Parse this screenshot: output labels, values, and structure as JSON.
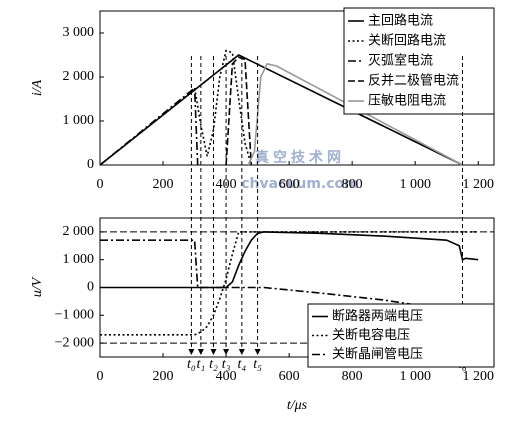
{
  "chart_data": [
    {
      "type": "line",
      "ylabel": "i/A",
      "legend": "upper right",
      "xlim": [
        0,
        1250
      ],
      "ylim": [
        0,
        3500
      ],
      "xticks": [
        0,
        200,
        400,
        600,
        800,
        {
          "value": 1000,
          "label": "1 000"
        },
        {
          "value": 1200,
          "label": "1 200"
        }
      ],
      "yticks": [
        0,
        {
          "value": 1000,
          "label": "1 000"
        },
        {
          "value": 2000,
          "label": "2 000"
        },
        {
          "value": 3000,
          "label": "3 000"
        }
      ],
      "watermark": [
        "真空技术网",
        "chvacuum.com"
      ],
      "series": [
        {
          "name": "主回路电流",
          "color": "#000000",
          "style": "solid",
          "x": [
            0,
            440,
            1150
          ],
          "values": [
            0,
            2500,
            0
          ]
        },
        {
          "name": "关断回路电流",
          "color": "#000000",
          "style": "dotted",
          "x": [
            300,
            320,
            340,
            360,
            380,
            400,
            420,
            440,
            460,
            480
          ],
          "values": [
            1750,
            900,
            200,
            800,
            2000,
            2600,
            2550,
            1500,
            500,
            0
          ]
        },
        {
          "name": "灭弧室电流",
          "color": "#000000",
          "style": "dashdot",
          "x": [
            0,
            300,
            310
          ],
          "values": [
            0,
            1750,
            0
          ]
        },
        {
          "name": "反并二极管电流",
          "color": "#000000",
          "style": "dashed",
          "x": [
            400,
            420,
            440,
            460,
            480
          ],
          "values": [
            0,
            2300,
            2450,
            2400,
            0
          ]
        },
        {
          "name": "压敏电阻电流",
          "color": "#999999",
          "style": "solid",
          "x": [
            470,
            490,
            510,
            530,
            560,
            1150
          ],
          "values": [
            0,
            300,
            2000,
            2300,
            2250,
            0
          ]
        }
      ]
    },
    {
      "type": "line",
      "ylabel": "u/V",
      "xlabel": "t/μs",
      "legend": "lower right",
      "xlim": [
        0,
        1250
      ],
      "ylim": [
        -2500,
        2500
      ],
      "xticks": [
        0,
        200,
        400,
        600,
        800,
        {
          "value": 1000,
          "label": "1 000"
        },
        {
          "value": 1200,
          "label": "1 200"
        }
      ],
      "yticks": [
        {
          "value": -2000,
          "label": "−2 000"
        },
        {
          "value": -1000,
          "label": "−1 000"
        },
        0,
        {
          "value": 1000,
          "label": "1 000"
        },
        {
          "value": 2000,
          "label": "2 000"
        }
      ],
      "hlines": [
        2000,
        -2000
      ],
      "time_markers": [
        {
          "value": 290,
          "label": "t₀"
        },
        {
          "value": 320,
          "label": "t₁"
        },
        {
          "value": 360,
          "label": "t₂"
        },
        {
          "value": 400,
          "label": "t₃"
        },
        {
          "value": 450,
          "label": "t₄"
        },
        {
          "value": 500,
          "label": "t₅"
        },
        {
          "value": 1150,
          "label": "t₆"
        }
      ],
      "series": [
        {
          "name": "断路器两端电压",
          "color": "#000000",
          "style": "solid",
          "x": [
            0,
            400,
            420,
            440,
            460,
            480,
            500,
            520,
            700,
            900,
            1100,
            1140,
            1150,
            1160,
            1200
          ],
          "values": [
            0,
            0,
            200,
            800,
            1300,
            1700,
            1950,
            2000,
            1950,
            1850,
            1700,
            1500,
            1000,
            1050,
            1000
          ]
        },
        {
          "name": "关断电容电压",
          "color": "#000000",
          "style": "dotted",
          "x": [
            0,
            300,
            320,
            340,
            360,
            380,
            400,
            420,
            440,
            1200
          ],
          "values": [
            -1700,
            -1700,
            -1600,
            -1400,
            -1000,
            -400,
            300,
            1200,
            2000,
            2000
          ]
        },
        {
          "name": "关断晶闸管电压",
          "color": "#000000",
          "style": "dashdot",
          "x": [
            0,
            300,
            310,
            520,
            700,
            900,
            1100,
            1150,
            1200
          ],
          "values": [
            1700,
            1700,
            0,
            0,
            -200,
            -450,
            -800,
            -1000,
            -1000
          ]
        }
      ]
    }
  ]
}
